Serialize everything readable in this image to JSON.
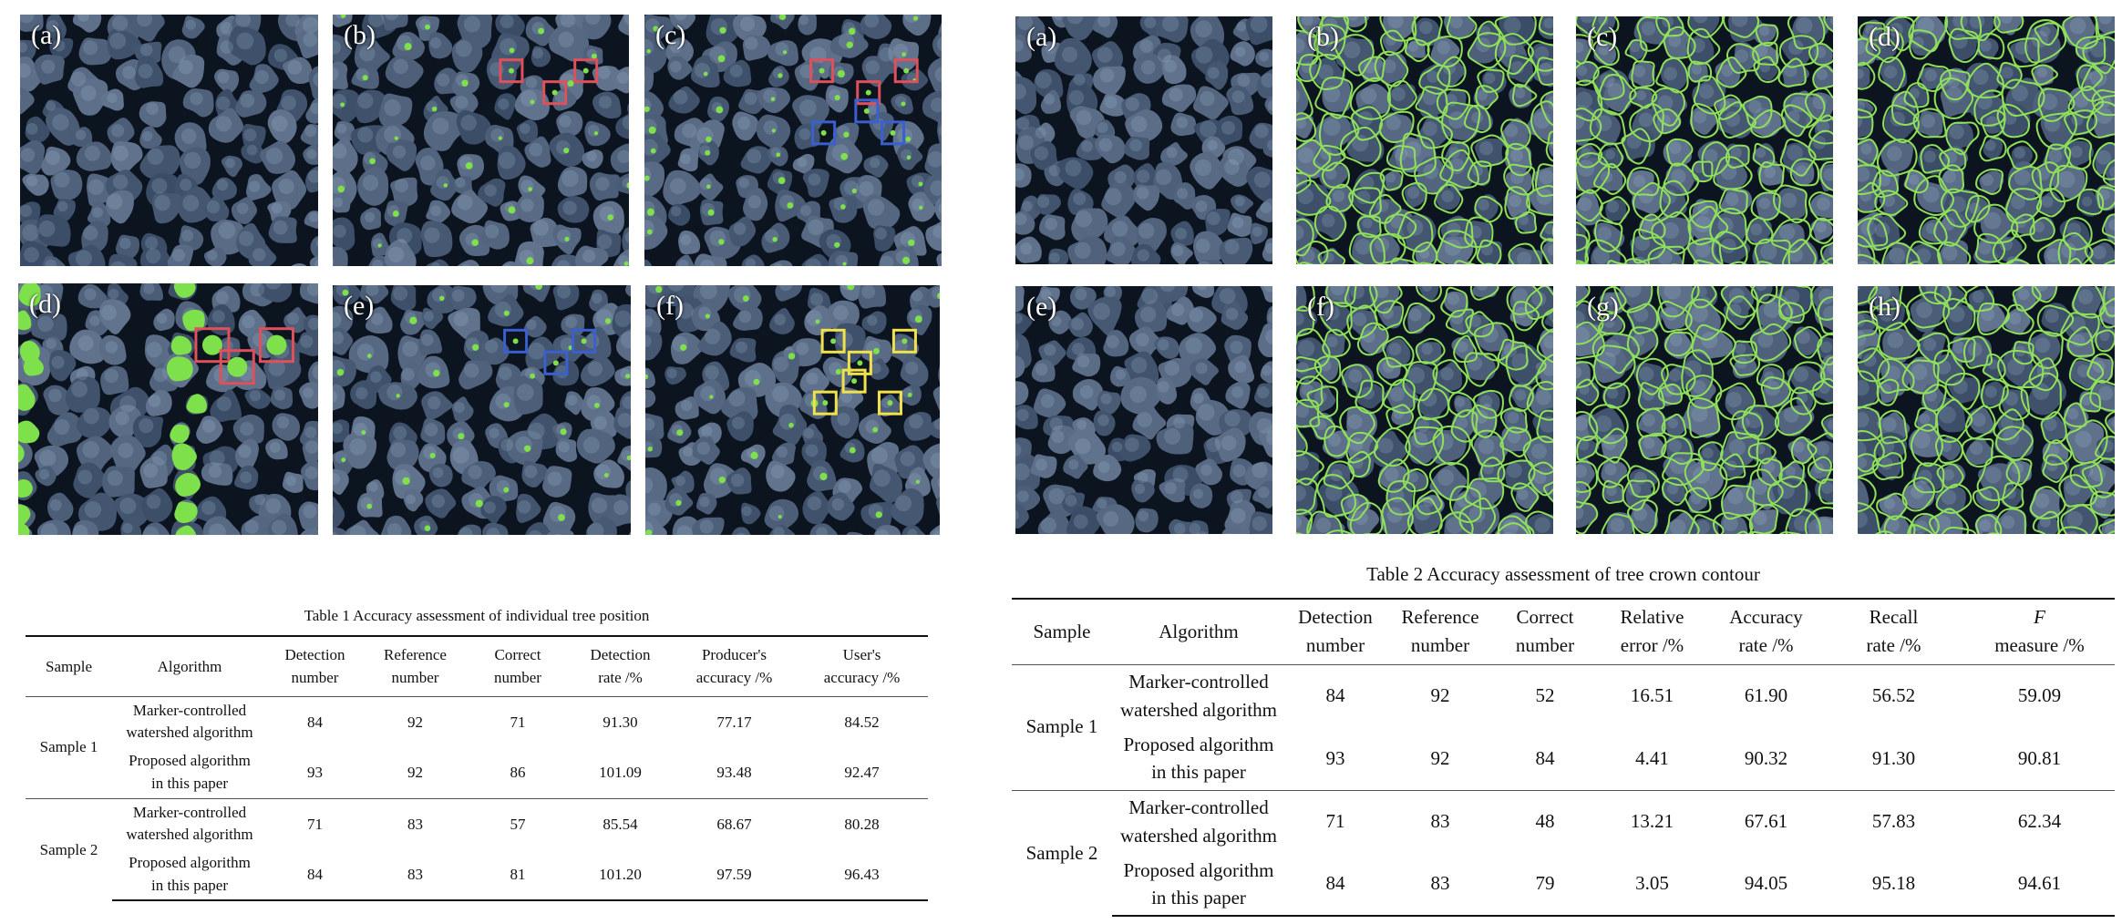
{
  "figure_left": {
    "panels": [
      {
        "label": "(a)",
        "markers": "none"
      },
      {
        "label": "(b)",
        "markers": "sparse-points",
        "boxes_red": 3,
        "boxes_blue": 0,
        "boxes_yellow": 0
      },
      {
        "label": "(c)",
        "markers": "dense-points",
        "boxes_red": 3,
        "boxes_blue": 3,
        "boxes_yellow": 0
      },
      {
        "label": "(d)",
        "markers": "large-blobs",
        "boxes_red": 3,
        "boxes_blue": 0,
        "boxes_yellow": 0
      },
      {
        "label": "(e)",
        "markers": "sparse-points",
        "boxes_red": 0,
        "boxes_blue": 3,
        "boxes_yellow": 0
      },
      {
        "label": "(f)",
        "markers": "sparse-points",
        "boxes_red": 0,
        "boxes_blue": 0,
        "boxes_yellow": 6
      }
    ],
    "colors": {
      "marker": "#7ee04a",
      "box_red": "#e0505a",
      "box_blue": "#3a5fd0",
      "box_yellow": "#f2e24a"
    }
  },
  "figure_right": {
    "panels": [
      {
        "label": "(a)",
        "contours": false
      },
      {
        "label": "(b)",
        "contours": true
      },
      {
        "label": "(c)",
        "contours": true
      },
      {
        "label": "(d)",
        "contours": true
      },
      {
        "label": "(e)",
        "contours": false
      },
      {
        "label": "(f)",
        "contours": true
      },
      {
        "label": "(g)",
        "contours": true
      },
      {
        "label": "(h)",
        "contours": true
      }
    ],
    "colors": {
      "contour": "#8ee05a"
    }
  },
  "table1": {
    "caption": "Table 1   Accuracy assessment of individual tree position",
    "headers": [
      [
        "Sample",
        ""
      ],
      [
        "Algorithm",
        ""
      ],
      [
        "Detection",
        "number"
      ],
      [
        "Reference",
        "number"
      ],
      [
        "Correct",
        "number"
      ],
      [
        "Detection",
        "rate /%"
      ],
      [
        "Producer's",
        "accuracy /%"
      ],
      [
        "User's",
        "accuracy /%"
      ]
    ],
    "groups": [
      {
        "sample": "Sample 1",
        "rows": [
          {
            "alg": [
              "Marker-controlled",
              "watershed algorithm"
            ],
            "values": [
              "84",
              "92",
              "71",
              "91.30",
              "77.17",
              "84.52"
            ]
          },
          {
            "alg": [
              "Proposed algorithm",
              "in this paper"
            ],
            "values": [
              "93",
              "92",
              "86",
              "101.09",
              "93.48",
              "92.47"
            ]
          }
        ]
      },
      {
        "sample": "Sample 2",
        "rows": [
          {
            "alg": [
              "Marker-controlled",
              "watershed algorithm"
            ],
            "values": [
              "71",
              "83",
              "57",
              "85.54",
              "68.67",
              "80.28"
            ]
          },
          {
            "alg": [
              "Proposed algorithm",
              "in this paper"
            ],
            "values": [
              "84",
              "83",
              "81",
              "101.20",
              "97.59",
              "96.43"
            ]
          }
        ]
      }
    ]
  },
  "table2": {
    "caption": "Table 2   Accuracy assessment of tree crown contour",
    "headers": [
      [
        "Sample",
        ""
      ],
      [
        "Algorithm",
        ""
      ],
      [
        "Detection",
        "number"
      ],
      [
        "Reference",
        "number"
      ],
      [
        "Correct",
        "number"
      ],
      [
        "Relative",
        "error /%"
      ],
      [
        "Accuracy",
        "rate /%"
      ],
      [
        "Recall",
        "rate /%"
      ],
      [
        "F",
        "measure /%"
      ]
    ],
    "groups": [
      {
        "sample": "Sample 1",
        "rows": [
          {
            "alg": [
              "Marker-controlled",
              "watershed algorithm"
            ],
            "values": [
              "84",
              "92",
              "52",
              "16.51",
              "61.90",
              "56.52",
              "59.09"
            ]
          },
          {
            "alg": [
              "Proposed algorithm",
              "in this paper"
            ],
            "values": [
              "93",
              "92",
              "84",
              "4.41",
              "90.32",
              "91.30",
              "90.81"
            ]
          }
        ]
      },
      {
        "sample": "Sample 2",
        "rows": [
          {
            "alg": [
              "Marker-controlled",
              "watershed algorithm"
            ],
            "values": [
              "71",
              "83",
              "48",
              "13.21",
              "67.61",
              "57.83",
              "62.34"
            ]
          },
          {
            "alg": [
              "Proposed algorithm",
              "in this paper"
            ],
            "values": [
              "84",
              "83",
              "79",
              "3.05",
              "94.05",
              "95.18",
              "94.61"
            ]
          }
        ]
      }
    ]
  }
}
